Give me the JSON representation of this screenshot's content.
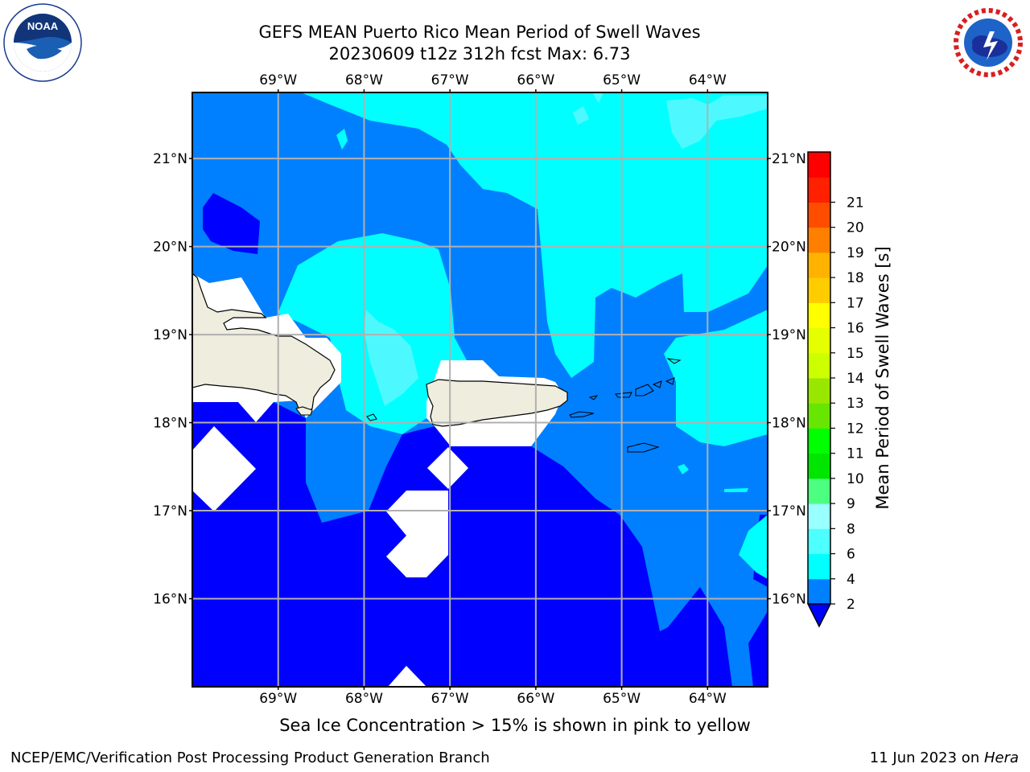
{
  "header": {
    "title_line1": "GEFS MEAN Puerto Rico Mean Period of Swell Waves",
    "title_line2": "20230609 t12z 312h fcst   Max: 6.73"
  },
  "logos": {
    "left": "noaa-logo",
    "right": "nws-logo"
  },
  "map": {
    "lon_labels": [
      "69°W",
      "68°W",
      "67°W",
      "66°W",
      "65°W",
      "64°W"
    ],
    "lat_labels": [
      "21°N",
      "20°N",
      "19°N",
      "18°N",
      "17°N",
      "16°N"
    ],
    "lon_range": [
      -70,
      -63.3
    ],
    "lat_range": [
      15,
      21.75
    ],
    "grid": true,
    "land_color": "#eeedde",
    "ocean_colors": {
      "2-4": "#0000ff",
      "4-6": "#0080ff",
      "6-8": "#00ffff",
      "8-10": "#4df9ff"
    }
  },
  "colorbar": {
    "label": "Mean Period of Swell Waves [s]",
    "tick_labels": [
      "2",
      "4",
      "6",
      "8",
      "9",
      "10",
      "11",
      "12",
      "13",
      "14",
      "15",
      "16",
      "17",
      "18",
      "19",
      "20",
      "21"
    ],
    "colors": [
      "#0080ff",
      "#00ffff",
      "#4dffff",
      "#99ffff",
      "#4dff80",
      "#00e600",
      "#00ff00",
      "#66e600",
      "#99e600",
      "#ccff00",
      "#e6ff00",
      "#ffff00",
      "#ffcc00",
      "#ffb300",
      "#ff8000",
      "#ff4d00",
      "#ff2000",
      "#ff0000"
    ],
    "extend_color": "#0000ff"
  },
  "caption": "Sea Ice Concentration > 15% is shown in pink to yellow",
  "footer": {
    "left": "NCEP/EMC/Verification Post Processing Product Generation Branch",
    "right_prefix": "11 Jun 2023 on ",
    "right_machine": "Hera"
  }
}
